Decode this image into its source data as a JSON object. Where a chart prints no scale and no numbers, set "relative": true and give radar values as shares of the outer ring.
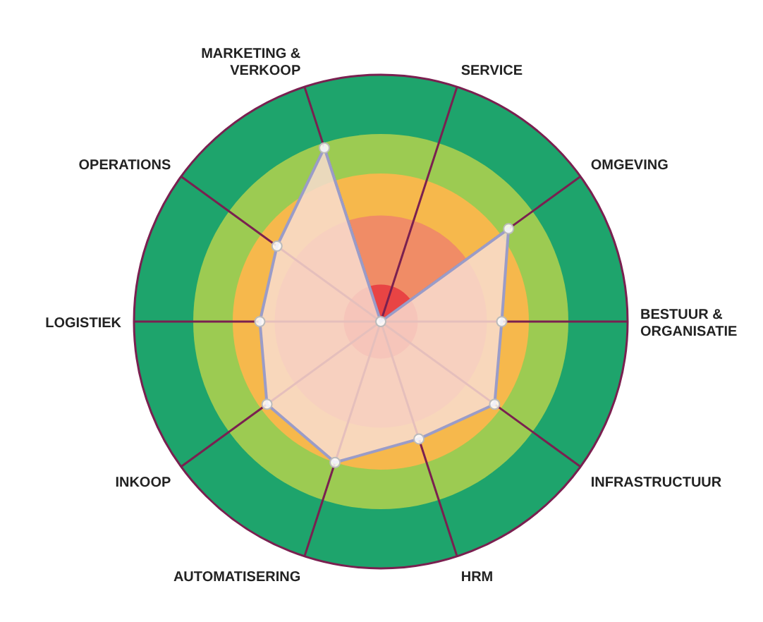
{
  "chart_data": {
    "type": "radar",
    "relative": true,
    "categories": [
      "SERVICE",
      "OMGEVING",
      "BESTUUR & ORGANISATIE",
      "INFRASTRUCTUUR",
      "HRM",
      "AUTOMATISERING",
      "INKOOP",
      "LOGISTIEK",
      "OPERATIONS",
      "MARKETING & VERKOOP"
    ],
    "series": [
      {
        "color": "#9a9cc8",
        "values": [
          0,
          0.64,
          0.49,
          0.57,
          0.5,
          0.6,
          0.57,
          0.49,
          0.52,
          0.74
        ]
      }
    ],
    "grid": true,
    "marker": "circle"
  }
}
